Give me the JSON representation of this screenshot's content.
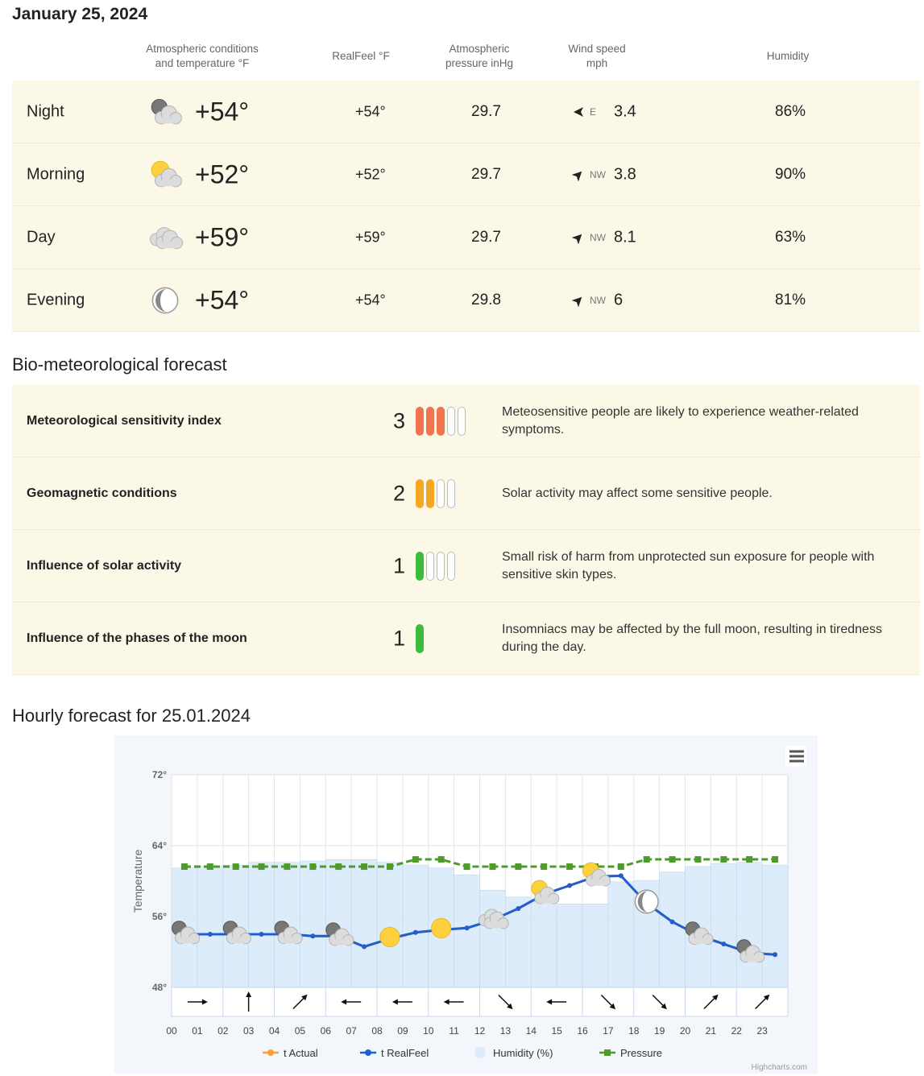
{
  "header": {
    "date": "January 25, 2024"
  },
  "table": {
    "columns": [
      "Atmospheric conditions and temperature °F",
      "RealFeel °F",
      "Atmospheric pressure inHg",
      "Wind speed mph",
      "Humidity"
    ],
    "rows": [
      {
        "period": "Night",
        "temperature": "+54°",
        "realfeel": "+54°",
        "pressure": "29.7",
        "wind_direction": "E",
        "wind_speed": "3.4",
        "humidity": "86%"
      },
      {
        "period": "Morning",
        "temperature": "+52°",
        "realfeel": "+52°",
        "pressure": "29.7",
        "wind_direction": "NW",
        "wind_speed": "3.8",
        "humidity": "90%"
      },
      {
        "period": "Day",
        "temperature": "+59°",
        "realfeel": "+59°",
        "pressure": "29.7",
        "wind_direction": "NW",
        "wind_speed": "8.1",
        "humidity": "63%"
      },
      {
        "period": "Evening",
        "temperature": "+54°",
        "realfeel": "+54°",
        "pressure": "29.8",
        "wind_direction": "NW",
        "wind_speed": "6",
        "humidity": "81%"
      }
    ]
  },
  "bio": {
    "title": "Bio-meteorological forecast",
    "items": [
      {
        "name": "Meteorological sensitivity index",
        "level": 3,
        "scale": 5,
        "color": "#f2734f",
        "text": "Meteosensitive people are likely to experience weather-related symptoms."
      },
      {
        "name": "Geomagnetic conditions",
        "level": 2,
        "scale": 4,
        "color": "#f5a623",
        "text": "Solar activity may affect some sensitive people."
      },
      {
        "name": "Influence of solar activity",
        "level": 1,
        "scale": 4,
        "color": "#3dbb3d",
        "text": "Small risk of harm from unprotected sun exposure for people with sensitive skin types."
      },
      {
        "name": "Influence of the phases of the moon",
        "level": 1,
        "scale": 1,
        "color": "#3dbb3d",
        "text": "Insomniacs may be affected by the full moon, resulting in tiredness during the day."
      }
    ]
  },
  "chart_data": {
    "type": "line",
    "title": "Hourly forecast for 25.01.2024",
    "y_label": "Temperature",
    "categories": [
      "00",
      "01",
      "02",
      "03",
      "04",
      "05",
      "06",
      "07",
      "08",
      "09",
      "10",
      "11",
      "12",
      "13",
      "14",
      "15",
      "16",
      "17",
      "18",
      "19",
      "20",
      "21",
      "22",
      "23"
    ],
    "ylim": [
      48,
      72
    ],
    "yticks": [
      {
        "value": 48,
        "label": "48°"
      },
      {
        "value": 56,
        "label": "56°"
      },
      {
        "value": 64,
        "label": "64°"
      },
      {
        "value": 72,
        "label": "72°"
      }
    ],
    "y2lim": [
      28.03,
      30.97
    ],
    "y3lim": [
      0,
      153
    ],
    "grid": true,
    "legend": "bottom",
    "credit": "Highcharts.com",
    "series": [
      {
        "name": "t Actual",
        "color": "#f7a035",
        "values": [
          54,
          54,
          54,
          54,
          54,
          53.8,
          53.8,
          52.6,
          53.5,
          54.2,
          54.5,
          54.7,
          55.6,
          56.9,
          58.5,
          59.5,
          60.5,
          60.6,
          57.5,
          55.4,
          53.9,
          52.9,
          51.9,
          51.7
        ]
      },
      {
        "name": "t RealFeel",
        "color": "#1f5fcf",
        "values": [
          54,
          54,
          54,
          54,
          54,
          53.8,
          53.8,
          52.6,
          53.5,
          54.2,
          54.5,
          54.7,
          55.6,
          56.9,
          58.5,
          59.5,
          60.5,
          60.6,
          57.5,
          55.4,
          53.9,
          52.9,
          51.9,
          51.7
        ]
      },
      {
        "name": "Humidity (%)",
        "color": "#dcecfa",
        "axis": "y3",
        "values": [
          86,
          87,
          88,
          90,
          90,
          91,
          92,
          92,
          90,
          88,
          86,
          81,
          70,
          65,
          62,
          60,
          60,
          76,
          77,
          83,
          87,
          89,
          90,
          88
        ]
      },
      {
        "name": "Pressure",
        "color": "#4e9a2a",
        "axis": "y2",
        "values": [
          29.7,
          29.7,
          29.7,
          29.7,
          29.7,
          29.7,
          29.7,
          29.7,
          29.7,
          29.8,
          29.8,
          29.7,
          29.7,
          29.7,
          29.7,
          29.7,
          29.7,
          29.7,
          29.8,
          29.8,
          29.8,
          29.8,
          29.8,
          29.8
        ]
      }
    ]
  }
}
